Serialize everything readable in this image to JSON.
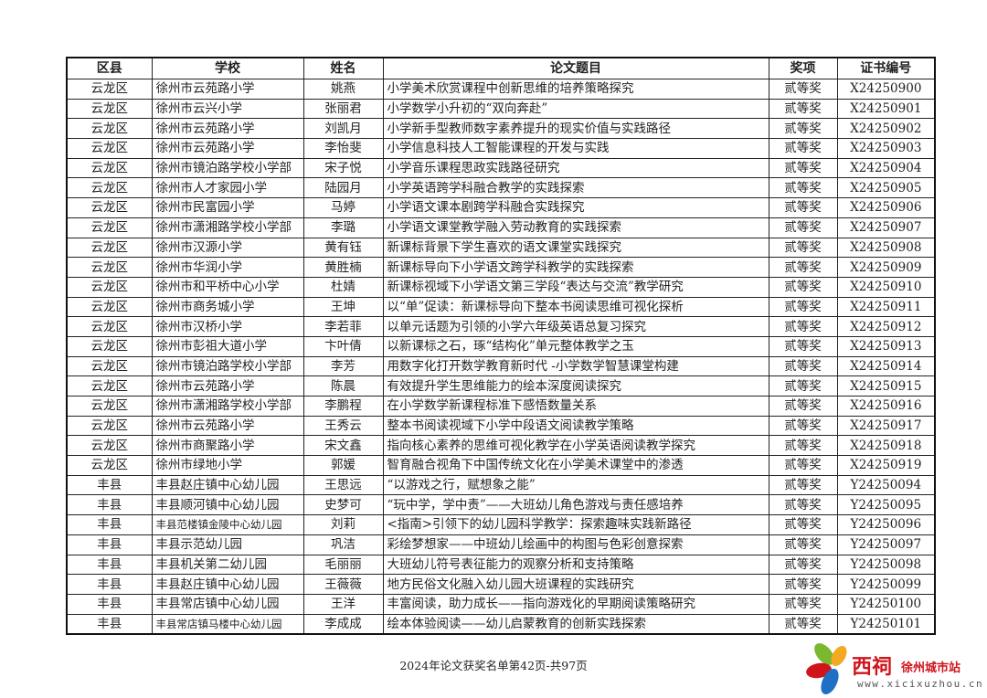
{
  "table": {
    "headers": [
      "区县",
      "学校",
      "姓名",
      "论文题目",
      "奖项",
      "证书编号"
    ],
    "rows": [
      [
        "云龙区",
        "徐州市云苑路小学",
        "姚燕",
        "小学美术欣赏课程中创新思维的培养策略探究",
        "贰等奖",
        "X24250900"
      ],
      [
        "云龙区",
        "徐州市云兴小学",
        "张丽君",
        "小学数学小升初的“双向奔赴”",
        "贰等奖",
        "X24250901"
      ],
      [
        "云龙区",
        "徐州市云苑路小学",
        "刘凯月",
        "小学新手型教师数字素养提升的现实价值与实践路径",
        "贰等奖",
        "X24250902"
      ],
      [
        "云龙区",
        "徐州市云苑路小学",
        "李怡斐",
        "小学信息科技人工智能课程的开发与实践",
        "贰等奖",
        "X24250903"
      ],
      [
        "云龙区",
        "徐州市镜泊路学校小学部",
        "宋子悦",
        "小学音乐课程思政实践路径研究",
        "贰等奖",
        "X24250904"
      ],
      [
        "云龙区",
        "徐州市人才家园小学",
        "陆园月",
        "小学英语跨学科融合教学的实践探索",
        "贰等奖",
        "X24250905"
      ],
      [
        "云龙区",
        "徐州市民富园小学",
        "马婷",
        "小学语文课本剧跨学科融合实践探究",
        "贰等奖",
        "X24250906"
      ],
      [
        "云龙区",
        "徐州市潇湘路学校小学部",
        "李璐",
        "小学语文课堂教学融入劳动教育的实践探索",
        "贰等奖",
        "X24250907"
      ],
      [
        "云龙区",
        "徐州市汉源小学",
        "黄有钰",
        "新课标背景下学生喜欢的语文课堂实践探究",
        "贰等奖",
        "X24250908"
      ],
      [
        "云龙区",
        "徐州市华润小学",
        "黄胜楠",
        "新课标导向下小学语文跨学科教学的实践探索",
        "贰等奖",
        "X24250909"
      ],
      [
        "云龙区",
        "徐州市和平桥中心小学",
        "杜婧",
        "新课标视域下小学语文第三学段“表达与交流”教学研究",
        "贰等奖",
        "X24250910"
      ],
      [
        "云龙区",
        "徐州市商务城小学",
        "王坤",
        "以“单”促读：新课标导向下整本书阅读思维可视化探析",
        "贰等奖",
        "X24250911"
      ],
      [
        "云龙区",
        "徐州市汉桥小学",
        "李若菲",
        "以单元话题为引领的小学六年级英语总复习探究",
        "贰等奖",
        "X24250912"
      ],
      [
        "云龙区",
        "徐州市彭祖大道小学",
        "卞叶倩",
        "以新课标之石，琢“结构化”单元整体教学之玉",
        "贰等奖",
        "X24250913"
      ],
      [
        "云龙区",
        "徐州市镜泊路学校小学部",
        "李芳",
        "用数字化打开数学教育新时代 -小学数学智慧课堂构建",
        "贰等奖",
        "X24250914"
      ],
      [
        "云龙区",
        "徐州市云苑路小学",
        "陈晨",
        "有效提升学生思维能力的绘本深度阅读探究",
        "贰等奖",
        "X24250915"
      ],
      [
        "云龙区",
        "徐州市潇湘路学校小学部",
        "李鹏程",
        "在小学数学新课程标准下感悟数量关系",
        "贰等奖",
        "X24250916"
      ],
      [
        "云龙区",
        "徐州市云苑路小学",
        "王秀云",
        "整本书阅读视域下小学中段语文阅读教学策略",
        "贰等奖",
        "X24250917"
      ],
      [
        "云龙区",
        "徐州市商聚路小学",
        "宋文鑫",
        "指向核心素养的思维可视化教学在小学英语阅读教学探究",
        "贰等奖",
        "X24250918"
      ],
      [
        "云龙区",
        "徐州市绿地小学",
        "郭媛",
        "智育融合视角下中国传统文化在小学美术课堂中的渗透",
        "贰等奖",
        "X24250919"
      ],
      [
        "丰县",
        "丰县赵庄镇中心幼儿园",
        "王思远",
        "“以游戏之行，赋想象之能”",
        "贰等奖",
        "Y24250094"
      ],
      [
        "丰县",
        "丰县顺河镇中心幼儿园",
        "史梦可",
        "“玩中学，学中责”——大班幼儿角色游戏与责任感培养",
        "贰等奖",
        "Y24250095"
      ],
      [
        "丰县",
        "丰县范楼镇金陵中心幼儿园",
        "刘莉",
        "<指南>引领下的幼儿园科学教学：探索趣味实践新路径",
        "贰等奖",
        "Y24250096"
      ],
      [
        "丰县",
        "丰县示范幼儿园",
        "巩洁",
        "彩绘梦想家——中班幼儿绘画中的构图与色彩创意探索",
        "贰等奖",
        "Y24250097"
      ],
      [
        "丰县",
        "丰县机关第二幼儿园",
        "毛丽丽",
        "大班幼儿符号表征能力的观察分析和支持策略",
        "贰等奖",
        "Y24250098"
      ],
      [
        "丰县",
        "丰县赵庄镇中心幼儿园",
        "王薇薇",
        "地方民俗文化融入幼儿园大班课程的实践研究",
        "贰等奖",
        "Y24250099"
      ],
      [
        "丰县",
        "丰县常店镇中心幼儿园",
        "王洋",
        "丰富阅读，助力成长——指向游戏化的早期阅读策略研究",
        "贰等奖",
        "Y24250100"
      ],
      [
        "丰县",
        "丰县常店镇马楼中心幼儿园",
        "李成成",
        "绘本体验阅读——幼儿启蒙教育的创新实践探索",
        "贰等奖",
        "Y24250101"
      ]
    ]
  },
  "footer": {
    "page_text": "2024年论文获奖名单第42页-共97页"
  },
  "logo": {
    "name": "西祠",
    "city": "徐州城市站",
    "url": "www.xicixuzhou.cn",
    "brand_color": "#d0141c"
  }
}
